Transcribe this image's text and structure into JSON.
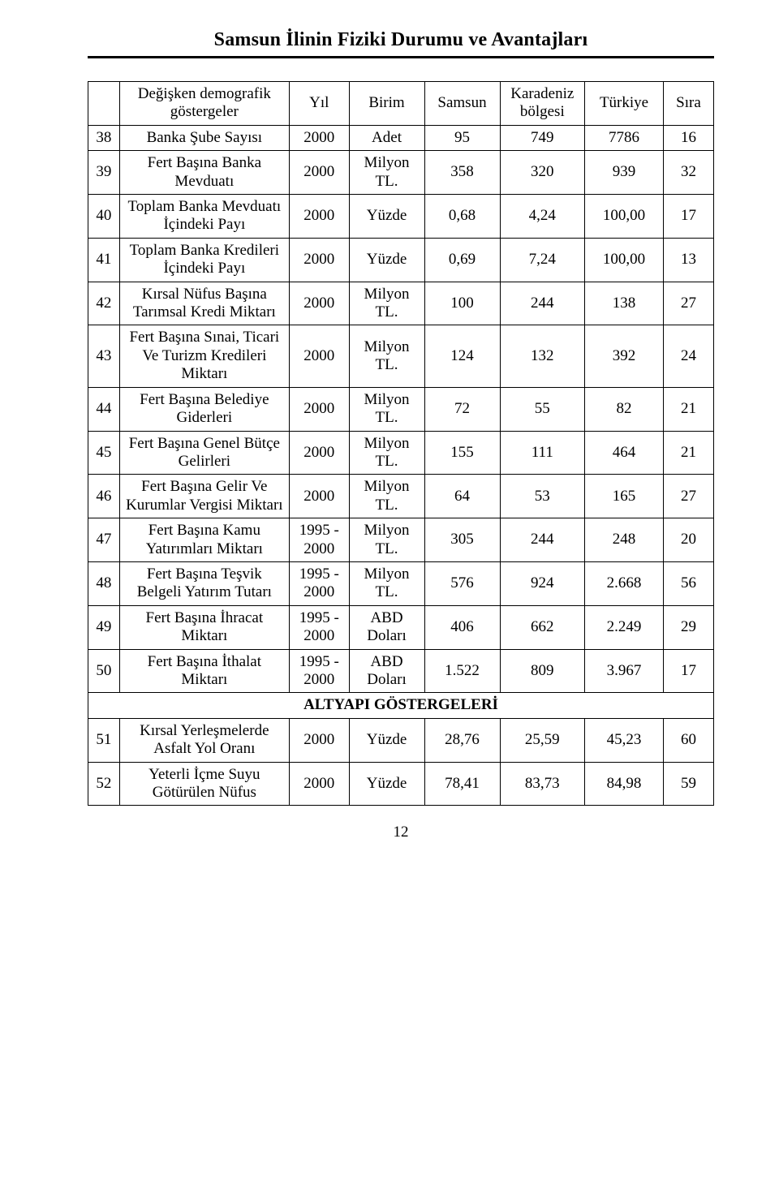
{
  "page_title": "Samsun İlinin  Fiziki Durumu ve Avantajları",
  "page_number": "12",
  "headers": {
    "indicator": "Değişken demografik göstergeler",
    "year": "Yıl",
    "unit": "Birim",
    "samsun": "Samsun",
    "karadeniz": "Karadeniz bölgesi",
    "turkiye": "Türkiye",
    "rank": "Sıra"
  },
  "section_label": "ALTYAPI GÖSTERGELERİ",
  "rows": [
    {
      "idx": "38",
      "ind": "Banka Şube Sayısı",
      "year": "2000",
      "unit": "Adet",
      "sam": "95",
      "kar": "749",
      "tur": "7786",
      "rank": "16"
    },
    {
      "idx": "39",
      "ind": "Fert Başına Banka Mevduatı",
      "year": "2000",
      "unit": "Milyon TL.",
      "sam": "358",
      "kar": "320",
      "tur": "939",
      "rank": "32"
    },
    {
      "idx": "40",
      "ind": "Toplam Banka Mevduatı İçindeki Payı",
      "year": "2000",
      "unit": "Yüzde",
      "sam": "0,68",
      "kar": "4,24",
      "tur": "100,00",
      "rank": "17"
    },
    {
      "idx": "41",
      "ind": "Toplam Banka Kredileri İçindeki Payı",
      "year": "2000",
      "unit": "Yüzde",
      "sam": "0,69",
      "kar": "7,24",
      "tur": "100,00",
      "rank": "13"
    },
    {
      "idx": "42",
      "ind": "Kırsal Nüfus Başına Tarımsal Kredi Miktarı",
      "year": "2000",
      "unit": "Milyon TL.",
      "sam": "100",
      "kar": "244",
      "tur": "138",
      "rank": "27"
    },
    {
      "idx": "43",
      "ind": "Fert Başına Sınai, Ticari Ve Turizm Kredileri Miktarı",
      "year": "2000",
      "unit": "Milyon TL.",
      "sam": "124",
      "kar": "132",
      "tur": "392",
      "rank": "24"
    },
    {
      "idx": "44",
      "ind": "Fert Başına Belediye Giderleri",
      "year": "2000",
      "unit": "Milyon TL.",
      "sam": "72",
      "kar": "55",
      "tur": "82",
      "rank": "21"
    },
    {
      "idx": "45",
      "ind": "Fert Başına Genel Bütçe Gelirleri",
      "year": "2000",
      "unit": "Milyon TL.",
      "sam": "155",
      "kar": "111",
      "tur": "464",
      "rank": "21"
    },
    {
      "idx": "46",
      "ind": "Fert Başına Gelir Ve Kurumlar Vergisi Miktarı",
      "year": "2000",
      "unit": "Milyon TL.",
      "sam": "64",
      "kar": "53",
      "tur": "165",
      "rank": "27"
    },
    {
      "idx": "47",
      "ind": "Fert Başına Kamu Yatırımları Miktarı",
      "year": "1995 - 2000",
      "unit": "Milyon TL.",
      "sam": "305",
      "kar": "244",
      "tur": "248",
      "rank": "20"
    },
    {
      "idx": "48",
      "ind": "Fert Başına Teşvik Belgeli Yatırım Tutarı",
      "year": "1995 - 2000",
      "unit": "Milyon TL.",
      "sam": "576",
      "kar": "924",
      "tur": "2.668",
      "rank": "56"
    },
    {
      "idx": "49",
      "ind": "Fert Başına İhracat Miktarı",
      "year": "1995 - 2000",
      "unit": "ABD Doları",
      "sam": "406",
      "kar": "662",
      "tur": "2.249",
      "rank": "29"
    },
    {
      "idx": "50",
      "ind": "Fert Başına İthalat Miktarı",
      "year": "1995 - 2000",
      "unit": "ABD Doları",
      "sam": "1.522",
      "kar": "809",
      "tur": "3.967",
      "rank": "17"
    },
    {
      "idx": "51",
      "ind": "Kırsal Yerleşmelerde Asfalt Yol Oranı",
      "year": "2000",
      "unit": "Yüzde",
      "sam": "28,76",
      "kar": "25,59",
      "tur": "45,23",
      "rank": "60"
    },
    {
      "idx": "52",
      "ind": "Yeterli İçme Suyu Götürülen Nüfus",
      "year": "2000",
      "unit": "Yüzde",
      "sam": "78,41",
      "kar": "83,73",
      "tur": "84,98",
      "rank": "59"
    }
  ],
  "colors": {
    "text": "#000000",
    "background": "#ffffff",
    "border": "#000000"
  },
  "fonts": {
    "family": "Times New Roman",
    "title_size_pt": 18,
    "body_size_pt": 14
  }
}
